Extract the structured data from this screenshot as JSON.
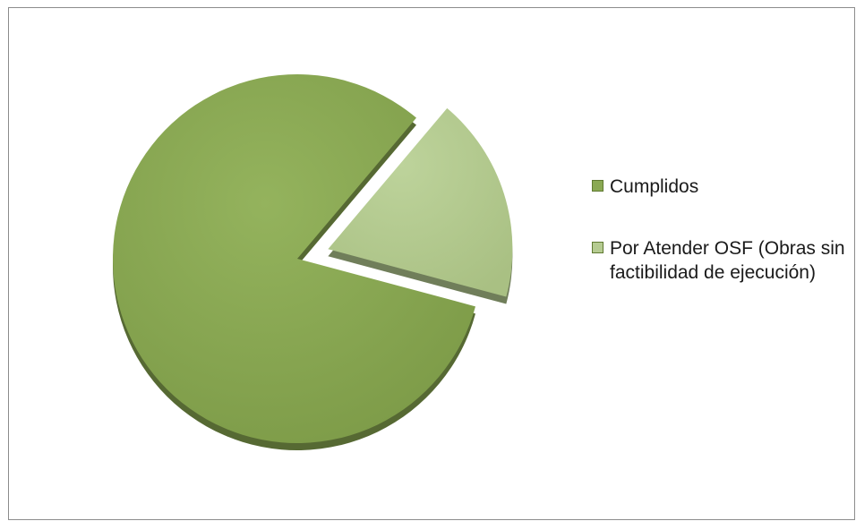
{
  "chart_data": {
    "type": "pie",
    "title": "",
    "style": "3d-exploded",
    "slices": [
      {
        "label": "Cumplidos",
        "value": 0.82,
        "color": "#8aa953"
      },
      {
        "label": "Por Atender OSF (Obras sin factibilidad de ejecución)",
        "value": 0.18,
        "color": "#b5cb91",
        "exploded": true
      }
    ],
    "legend_position": "right"
  }
}
